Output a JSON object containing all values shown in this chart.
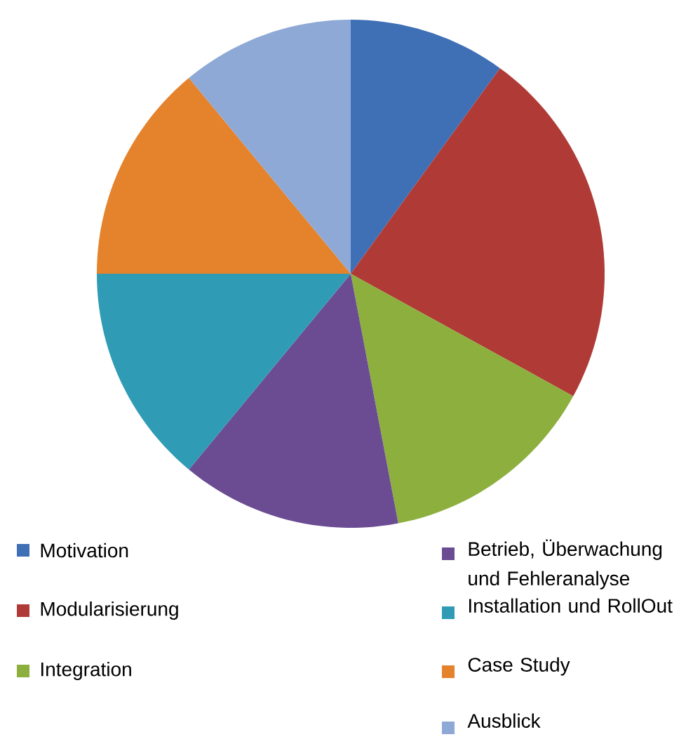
{
  "chart_data": {
    "type": "pie",
    "categories": [
      "Motivation",
      "Modularisierung",
      "Integration",
      "Betrieb, Überwachung und Fehleranalyse",
      "Installation und RollOut",
      "Case Study",
      "Ausblick"
    ],
    "values": [
      10,
      23,
      14,
      14,
      14,
      14,
      11
    ],
    "colors": [
      "#3f6fb5",
      "#b03a36",
      "#8caf3e",
      "#6b4c93",
      "#2f9bb5",
      "#e5822c",
      "#8ea9d6"
    ],
    "legend": "bottom"
  }
}
